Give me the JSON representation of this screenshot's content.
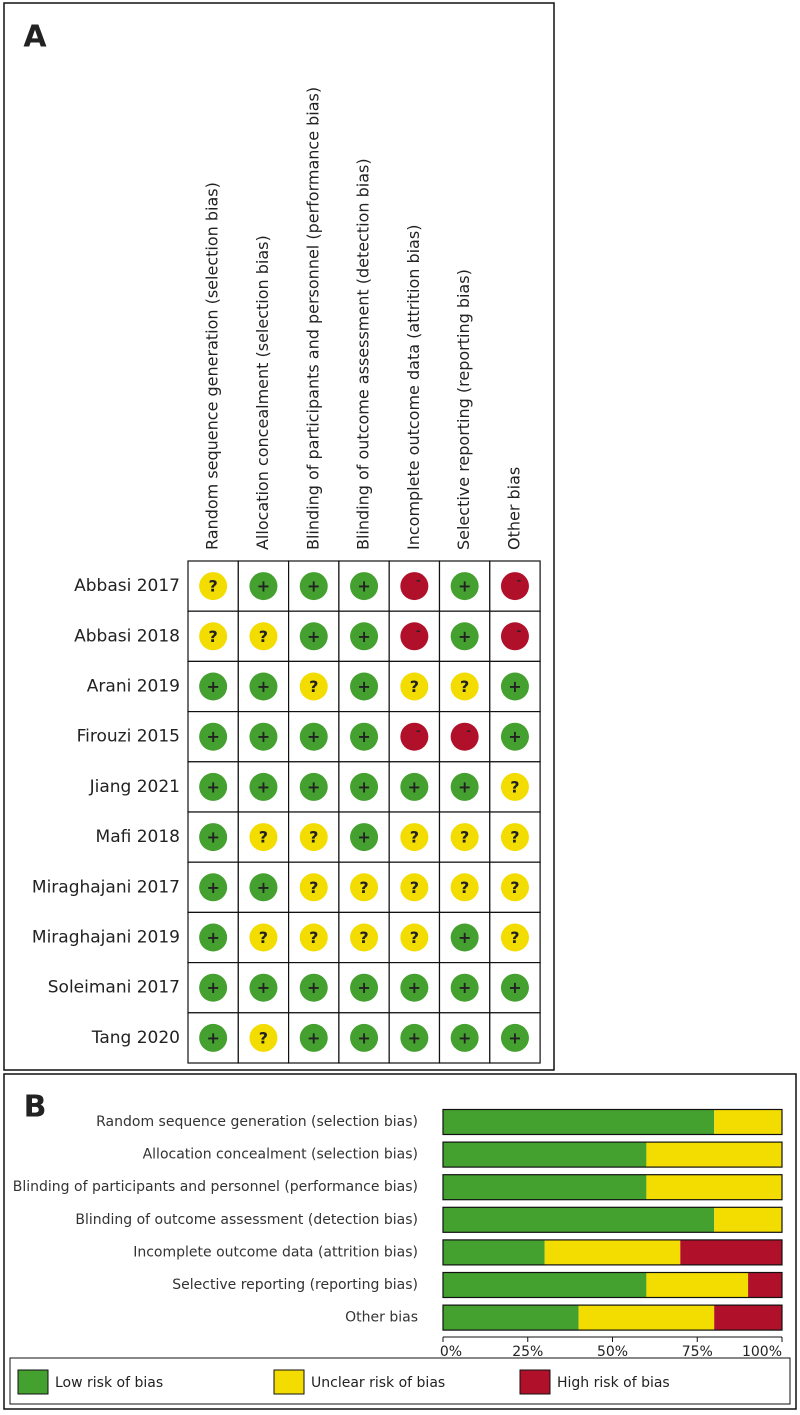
{
  "chart_data": [
    {
      "type": "rob-grid",
      "label": "A",
      "domains": [
        "Random sequence generation (selection bias)",
        "Allocation concealment (selection bias)",
        "Blinding of participants and personnel (performance bias)",
        "Blinding of outcome assessment (detection bias)",
        "Incomplete outcome data (attrition bias)",
        "Selective reporting (reporting bias)",
        "Other bias"
      ],
      "studies": [
        "Abbasi 2017",
        "Abbasi 2018",
        "Arani 2019",
        "Firouzi 2015",
        "Jiang 2021",
        "Mafi 2018",
        "Miraghajani 2017",
        "Miraghajani 2019",
        "Soleimani 2017",
        "Tang 2020"
      ],
      "judgments": [
        [
          "?",
          "+",
          "+",
          "+",
          "-",
          "+",
          "-"
        ],
        [
          "?",
          "?",
          "+",
          "+",
          "-",
          "+",
          "-"
        ],
        [
          "+",
          "+",
          "?",
          "+",
          "?",
          "?",
          "+"
        ],
        [
          "+",
          "+",
          "+",
          "+",
          "-",
          "-",
          "+"
        ],
        [
          "+",
          "+",
          "+",
          "+",
          "+",
          "+",
          "?"
        ],
        [
          "+",
          "?",
          "?",
          "+",
          "?",
          "?",
          "?"
        ],
        [
          "+",
          "+",
          "?",
          "?",
          "?",
          "?",
          "?"
        ],
        [
          "+",
          "?",
          "?",
          "?",
          "?",
          "+",
          "?"
        ],
        [
          "+",
          "+",
          "+",
          "+",
          "+",
          "+",
          "+"
        ],
        [
          "+",
          "?",
          "+",
          "+",
          "+",
          "+",
          "+"
        ]
      ],
      "colors": {
        "+": "#44a02f",
        "?": "#f3dc00",
        "-": "#b1102b"
      }
    },
    {
      "type": "stacked-barh",
      "label": "B",
      "categories": [
        "Random sequence generation (selection bias)",
        "Allocation concealment (selection bias)",
        "Blinding of participants and personnel (performance bias)",
        "Blinding of outcome assessment (detection bias)",
        "Incomplete outcome data (attrition bias)",
        "Selective reporting (reporting bias)",
        "Other bias"
      ],
      "series": [
        {
          "name": "Low risk of bias",
          "color": "#44a02f",
          "values": [
            80,
            60,
            60,
            80,
            30,
            60,
            40
          ]
        },
        {
          "name": "Unclear risk of bias",
          "color": "#f3dc00",
          "values": [
            20,
            40,
            40,
            20,
            40,
            30,
            40
          ]
        },
        {
          "name": "High risk of bias",
          "color": "#b1102b",
          "values": [
            0,
            0,
            0,
            0,
            30,
            10,
            20
          ]
        }
      ],
      "xlim": [
        0,
        100
      ],
      "xticks": [
        {
          "value": 0,
          "label": "0%"
        },
        {
          "value": 25,
          "label": "25%"
        },
        {
          "value": 50,
          "label": "50%"
        },
        {
          "value": 75,
          "label": "75%"
        },
        {
          "value": 100,
          "label": "100%"
        }
      ],
      "legend": "bottom"
    }
  ]
}
